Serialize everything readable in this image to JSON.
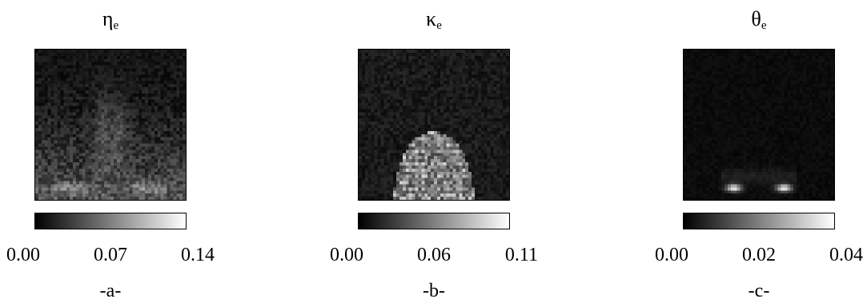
{
  "chart_data": [
    {
      "type": "heatmap",
      "title": "η",
      "title_subscript": "e",
      "caption": "-a-",
      "colormap": "gray",
      "colorbar_ticks": [
        "0.00",
        "0.07",
        "0.14"
      ],
      "range": [
        0.0,
        0.14
      ]
    },
    {
      "type": "heatmap",
      "title": "κ",
      "title_subscript": "e",
      "caption": "-b-",
      "colormap": "gray",
      "colorbar_ticks": [
        "0.00",
        "0.06",
        "0.11"
      ],
      "range": [
        0.0,
        0.11
      ]
    },
    {
      "type": "heatmap",
      "title": "θ",
      "title_subscript": "e",
      "caption": "-c-",
      "colormap": "gray",
      "colorbar_ticks": [
        "0.00",
        "0.02",
        "0.04"
      ],
      "range": [
        0.0,
        0.04
      ]
    }
  ],
  "colors": {
    "low": "#000000",
    "high": "#ffffff",
    "frame": "#000000"
  }
}
